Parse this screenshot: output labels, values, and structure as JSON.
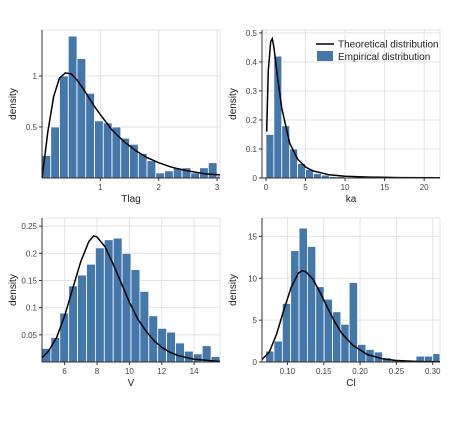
{
  "legend": {
    "theoretical": "Theoretical distribution",
    "empirical": "Empirical distribution",
    "placement": "top-right"
  },
  "colors": {
    "bar": "#4477aa",
    "curve": "#000000",
    "grid": "#e3e3e3",
    "axis": "#333333"
  },
  "chart_data": [
    {
      "type": "bar",
      "xlabel": "Tlag",
      "ylabel": "density",
      "xlim": [
        0,
        3.05
      ],
      "ylim": [
        0,
        1.45
      ],
      "grid": true,
      "xticks": [
        {
          "v": 1,
          "t": "1"
        },
        {
          "v": 2,
          "t": "2"
        },
        {
          "v": 3,
          "t": "3"
        }
      ],
      "yticks": [
        {
          "v": 0.5,
          "t": "0.5"
        },
        {
          "v": 1,
          "t": "1"
        }
      ],
      "bin_start": 0.0,
      "bin_width": 0.15,
      "values": [
        0.22,
        0.5,
        1.0,
        1.39,
        1.17,
        0.83,
        0.56,
        0.54,
        0.5,
        0.39,
        0.33,
        0.24,
        0.17,
        0.05,
        0.07,
        0.1,
        0.1,
        0.05,
        0.1,
        0.15,
        0.02
      ],
      "curve_label": "Theoretical distribution",
      "curve_points": [
        [
          0,
          0
        ],
        [
          0.05,
          0.22
        ],
        [
          0.1,
          0.45
        ],
        [
          0.2,
          0.8
        ],
        [
          0.3,
          0.98
        ],
        [
          0.4,
          1.03
        ],
        [
          0.5,
          1.02
        ],
        [
          0.6,
          0.96
        ],
        [
          0.7,
          0.88
        ],
        [
          0.8,
          0.79
        ],
        [
          0.9,
          0.7
        ],
        [
          1.0,
          0.62
        ],
        [
          1.2,
          0.47
        ],
        [
          1.4,
          0.36
        ],
        [
          1.6,
          0.27
        ],
        [
          1.8,
          0.2
        ],
        [
          2.0,
          0.15
        ],
        [
          2.2,
          0.11
        ],
        [
          2.4,
          0.08
        ],
        [
          2.6,
          0.06
        ],
        [
          2.8,
          0.04
        ],
        [
          3.05,
          0.03
        ]
      ]
    },
    {
      "type": "bar",
      "xlabel": "ka",
      "ylabel": "density",
      "xlim": [
        -0.5,
        22
      ],
      "ylim": [
        0,
        0.51
      ],
      "grid": true,
      "xticks": [
        {
          "v": 0,
          "t": "0"
        },
        {
          "v": 5,
          "t": "5"
        },
        {
          "v": 10,
          "t": "10"
        },
        {
          "v": 15,
          "t": "15"
        },
        {
          "v": 20,
          "t": "20"
        }
      ],
      "yticks": [
        {
          "v": 0,
          "t": "0"
        },
        {
          "v": 0.1,
          "t": "0.1"
        },
        {
          "v": 0.2,
          "t": "0.2"
        },
        {
          "v": 0.3,
          "t": "0.3"
        },
        {
          "v": 0.4,
          "t": "0.4"
        },
        {
          "v": 0.5,
          "t": "0.5"
        }
      ],
      "bin_start": 0,
      "bin_width": 1,
      "values": [
        0.15,
        0.42,
        0.18,
        0.1,
        0.05,
        0.03,
        0.015,
        0.01,
        0.005,
        0.005,
        0.003,
        0.003,
        0.002,
        0.002,
        0.002,
        0.001,
        0.001,
        0.001,
        0.001,
        0.001,
        0.001,
        0.001
      ],
      "curve_label": "Theoretical distribution",
      "curve_points": [
        [
          0.1,
          0.16
        ],
        [
          0.3,
          0.37
        ],
        [
          0.6,
          0.47
        ],
        [
          0.8,
          0.48
        ],
        [
          1.0,
          0.45
        ],
        [
          1.5,
          0.34
        ],
        [
          2.0,
          0.24
        ],
        [
          3.0,
          0.12
        ],
        [
          4.0,
          0.065
        ],
        [
          5.0,
          0.038
        ],
        [
          6.0,
          0.024
        ],
        [
          8.0,
          0.011
        ],
        [
          10.0,
          0.006
        ],
        [
          13.0,
          0.003
        ],
        [
          17.0,
          0.0015
        ],
        [
          22.0,
          0.001
        ]
      ]
    },
    {
      "type": "bar",
      "xlabel": "V",
      "ylabel": "density",
      "xlim": [
        4.6,
        15.6
      ],
      "ylim": [
        0,
        0.265
      ],
      "grid": true,
      "xticks": [
        {
          "v": 6,
          "t": "6"
        },
        {
          "v": 8,
          "t": "8"
        },
        {
          "v": 10,
          "t": "10"
        },
        {
          "v": 12,
          "t": "12"
        },
        {
          "v": 14,
          "t": "14"
        }
      ],
      "yticks": [
        {
          "v": 0.05,
          "t": "0.05"
        },
        {
          "v": 0.1,
          "t": "0.1"
        },
        {
          "v": 0.15,
          "t": "0.15"
        },
        {
          "v": 0.2,
          "t": "0.2"
        },
        {
          "v": 0.25,
          "t": "0.25"
        }
      ],
      "bin_start": 4.6,
      "bin_width": 0.55,
      "values": [
        0.025,
        0.045,
        0.09,
        0.14,
        0.16,
        0.18,
        0.21,
        0.225,
        0.228,
        0.2,
        0.17,
        0.13,
        0.085,
        0.062,
        0.055,
        0.035,
        0.02,
        0.015,
        0.03,
        0.01
      ],
      "curve_label": "Theoretical distribution",
      "curve_points": [
        [
          4.6,
          0.008
        ],
        [
          5.0,
          0.02
        ],
        [
          5.5,
          0.045
        ],
        [
          6.0,
          0.085
        ],
        [
          6.5,
          0.135
        ],
        [
          7.0,
          0.185
        ],
        [
          7.5,
          0.222
        ],
        [
          7.8,
          0.232
        ],
        [
          8.0,
          0.23
        ],
        [
          8.5,
          0.212
        ],
        [
          9.0,
          0.18
        ],
        [
          9.5,
          0.145
        ],
        [
          10.0,
          0.11
        ],
        [
          10.5,
          0.08
        ],
        [
          11.0,
          0.058
        ],
        [
          11.5,
          0.04
        ],
        [
          12.0,
          0.027
        ],
        [
          12.5,
          0.018
        ],
        [
          13.0,
          0.012
        ],
        [
          14.0,
          0.005
        ],
        [
          15.6,
          0.001
        ]
      ]
    },
    {
      "type": "bar",
      "xlabel": "Cl",
      "ylabel": "density",
      "xlim": [
        0.065,
        0.31
      ],
      "ylim": [
        0,
        17.2
      ],
      "grid": true,
      "xticks": [
        {
          "v": 0.1,
          "t": "0.10"
        },
        {
          "v": 0.15,
          "t": "0.15"
        },
        {
          "v": 0.2,
          "t": "0.20"
        },
        {
          "v": 0.25,
          "t": "0.25"
        },
        {
          "v": 0.3,
          "t": "0.30"
        }
      ],
      "yticks": [
        {
          "v": 0,
          "t": "0"
        },
        {
          "v": 5,
          "t": "5"
        },
        {
          "v": 10,
          "t": "10"
        },
        {
          "v": 15,
          "t": "15"
        }
      ],
      "bin_start": 0.07,
      "bin_width": 0.0115,
      "values": [
        1.3,
        2.5,
        7.0,
        13.3,
        16.0,
        13.8,
        9.0,
        7.5,
        6.0,
        4.5,
        9.5,
        2.1,
        1.5,
        1.2,
        0.5,
        0.3,
        0.2,
        0.2,
        0.7,
        0.7,
        1.0
      ],
      "curve_label": "Theoretical distribution",
      "curve_points": [
        [
          0.065,
          0.3
        ],
        [
          0.075,
          1.2
        ],
        [
          0.085,
          3.3
        ],
        [
          0.095,
          6.2
        ],
        [
          0.105,
          8.9
        ],
        [
          0.115,
          10.6
        ],
        [
          0.12,
          10.9
        ],
        [
          0.125,
          10.8
        ],
        [
          0.135,
          9.9
        ],
        [
          0.145,
          8.3
        ],
        [
          0.155,
          6.5
        ],
        [
          0.165,
          4.8
        ],
        [
          0.175,
          3.4
        ],
        [
          0.19,
          2.0
        ],
        [
          0.21,
          0.9
        ],
        [
          0.23,
          0.4
        ],
        [
          0.25,
          0.18
        ],
        [
          0.28,
          0.06
        ],
        [
          0.31,
          0.02
        ]
      ]
    }
  ]
}
